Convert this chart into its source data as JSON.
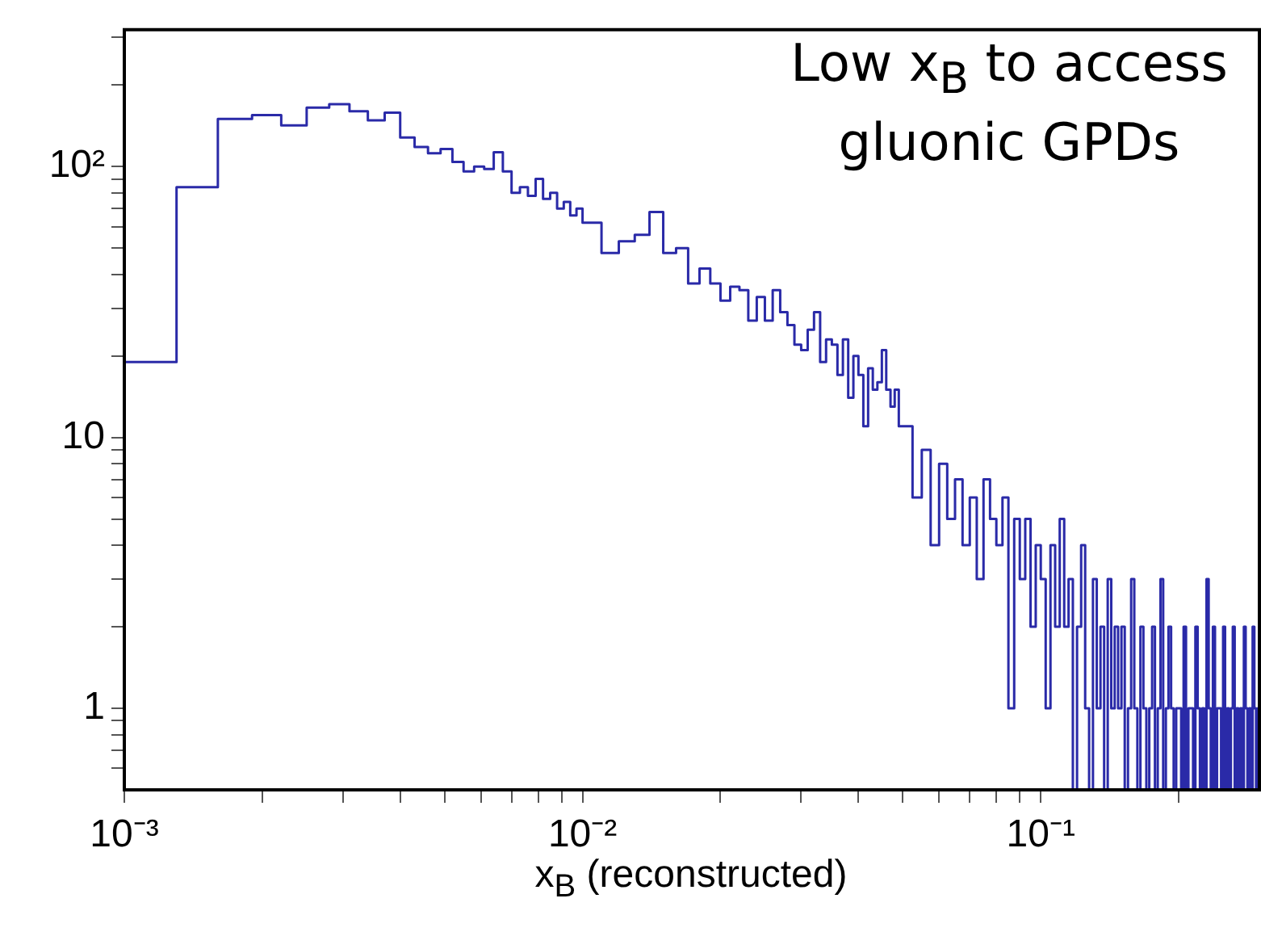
{
  "chart_data": {
    "type": "histogram",
    "xlabel": "x$_{B}$ (reconstructed)",
    "annotations": [
      "Low x$_{B}$ to access gluonic GPDs"
    ],
    "log": "xy",
    "grid": false,
    "color": "#2a2aa8",
    "xlim": [
      0.001,
      0.3
    ],
    "ylim": [
      0.5,
      320
    ],
    "xticks": [
      {
        "value": 0.001,
        "label": "10⁻³"
      },
      {
        "value": 0.002,
        "label": null
      },
      {
        "value": 0.003,
        "label": null
      },
      {
        "value": 0.004,
        "label": null
      },
      {
        "value": 0.005,
        "label": null
      },
      {
        "value": 0.006,
        "label": null
      },
      {
        "value": 0.007,
        "label": null
      },
      {
        "value": 0.008,
        "label": null
      },
      {
        "value": 0.009,
        "label": null
      },
      {
        "value": 0.01,
        "label": "10⁻²"
      },
      {
        "value": 0.02,
        "label": null
      },
      {
        "value": 0.03,
        "label": null
      },
      {
        "value": 0.04,
        "label": null
      },
      {
        "value": 0.05,
        "label": null
      },
      {
        "value": 0.06,
        "label": null
      },
      {
        "value": 0.07,
        "label": null
      },
      {
        "value": 0.08,
        "label": null
      },
      {
        "value": 0.09,
        "label": null
      },
      {
        "value": 0.1,
        "label": "10⁻¹"
      },
      {
        "value": 0.2,
        "label": null
      }
    ],
    "yticks": [
      {
        "value": 0.6,
        "label": null
      },
      {
        "value": 0.7,
        "label": null
      },
      {
        "value": 0.8,
        "label": null
      },
      {
        "value": 0.9,
        "label": null
      },
      1,
      {
        "value": 2,
        "label": null
      },
      {
        "value": 3,
        "label": null
      },
      {
        "value": 4,
        "label": null
      },
      {
        "value": 5,
        "label": null
      },
      {
        "value": 6,
        "label": null
      },
      {
        "value": 7,
        "label": null
      },
      {
        "value": 8,
        "label": null
      },
      {
        "value": 9,
        "label": null
      },
      10,
      {
        "value": 20,
        "label": null
      },
      {
        "value": 30,
        "label": null
      },
      {
        "value": 40,
        "label": null
      },
      {
        "value": 50,
        "label": null
      },
      {
        "value": 60,
        "label": null
      },
      {
        "value": 70,
        "label": null
      },
      {
        "value": 80,
        "label": null
      },
      {
        "value": 90,
        "label": null
      },
      {
        "value": 100,
        "label": "10²"
      },
      {
        "value": 200,
        "label": null
      },
      {
        "value": 300,
        "label": null
      }
    ],
    "bins": [
      0.001,
      0.0013,
      0.0016,
      0.0019,
      0.0022,
      0.0025,
      0.0028,
      0.0031,
      0.0034,
      0.0037,
      0.004,
      0.0043,
      0.0046,
      0.0049,
      0.0052,
      0.0055,
      0.0058,
      0.0061,
      0.0064,
      0.0067,
      0.007,
      0.0073,
      0.0076,
      0.0079,
      0.0082,
      0.0085,
      0.0088,
      0.0091,
      0.0094,
      0.0097,
      0.01,
      0.011,
      0.012,
      0.013,
      0.014,
      0.015,
      0.016,
      0.017,
      0.018,
      0.019,
      0.02,
      0.021,
      0.022,
      0.023,
      0.024,
      0.025,
      0.026,
      0.027,
      0.028,
      0.029,
      0.03,
      0.031,
      0.032,
      0.033,
      0.034,
      0.035,
      0.036,
      0.037,
      0.038,
      0.039,
      0.04,
      0.041,
      0.042,
      0.043,
      0.044,
      0.045,
      0.046,
      0.047,
      0.048,
      0.049,
      0.05,
      0.0525,
      0.055,
      0.0575,
      0.06,
      0.0625,
      0.065,
      0.0675,
      0.07,
      0.0725,
      0.075,
      0.0775,
      0.08,
      0.0825,
      0.085,
      0.0875,
      0.09,
      0.0925,
      0.095,
      0.0975,
      0.1,
      0.1025,
      0.105,
      0.1075,
      0.11,
      0.1125,
      0.115,
      0.1175,
      0.12,
      0.1225,
      0.125,
      0.1275,
      0.13,
      0.1325,
      0.135,
      0.1375,
      0.14,
      0.1425,
      0.145,
      0.1475,
      0.15,
      0.1525,
      0.155,
      0.1575,
      0.16,
      0.1625,
      0.165,
      0.1675,
      0.17,
      0.1725,
      0.175,
      0.1775,
      0.18,
      0.1825,
      0.185,
      0.1875,
      0.19,
      0.1925,
      0.195,
      0.1975,
      0.2,
      0.2025,
      0.205,
      0.2075,
      0.21,
      0.2125,
      0.215,
      0.2175,
      0.22,
      0.2225,
      0.225,
      0.2275,
      0.23,
      0.2325,
      0.235,
      0.2375,
      0.24,
      0.2425,
      0.245,
      0.2475,
      0.25,
      0.2525,
      0.255,
      0.2575,
      0.26,
      0.2625,
      0.265,
      0.2675,
      0.27,
      0.2725,
      0.275,
      0.2775,
      0.28,
      0.2825,
      0.285,
      0.2875,
      0.29,
      0.2925,
      0.295,
      0.2975,
      0.3
    ],
    "values": [
      19,
      84,
      150,
      155,
      142,
      165,
      170,
      160,
      148,
      158,
      128,
      118,
      112,
      116,
      104,
      96,
      100,
      98,
      113,
      96,
      80,
      84,
      78,
      90,
      76,
      80,
      70,
      74,
      66,
      70,
      62,
      48,
      53,
      56,
      68,
      48,
      50,
      37,
      42,
      37,
      32,
      36,
      35,
      27,
      33,
      27,
      35,
      29,
      26,
      22,
      21,
      25,
      29,
      19,
      23,
      22,
      17,
      23,
      14,
      20,
      17,
      11,
      18,
      15,
      16,
      21,
      15,
      13,
      15,
      11,
      11,
      6,
      9,
      4,
      8,
      5,
      7,
      4,
      6,
      3,
      7,
      5,
      4,
      6,
      1,
      5,
      3,
      5,
      2,
      4,
      3,
      1,
      4,
      2,
      5,
      2,
      3,
      null,
      2,
      4,
      1,
      null,
      3,
      1,
      2,
      null,
      3,
      1,
      2,
      1,
      2,
      null,
      1,
      3,
      1,
      null,
      2,
      1,
      null,
      1,
      2,
      null,
      1,
      3,
      null,
      1,
      2,
      1,
      null,
      1,
      1,
      null,
      2,
      null,
      1,
      1,
      null,
      2,
      1,
      null,
      1,
      null,
      3,
      1,
      null,
      2,
      null,
      1,
      1,
      null,
      2,
      null,
      1,
      null,
      1,
      2,
      null,
      1,
      null,
      1,
      null,
      2,
      1,
      null,
      1,
      null,
      2,
      1,
      null,
      1
    ]
  }
}
